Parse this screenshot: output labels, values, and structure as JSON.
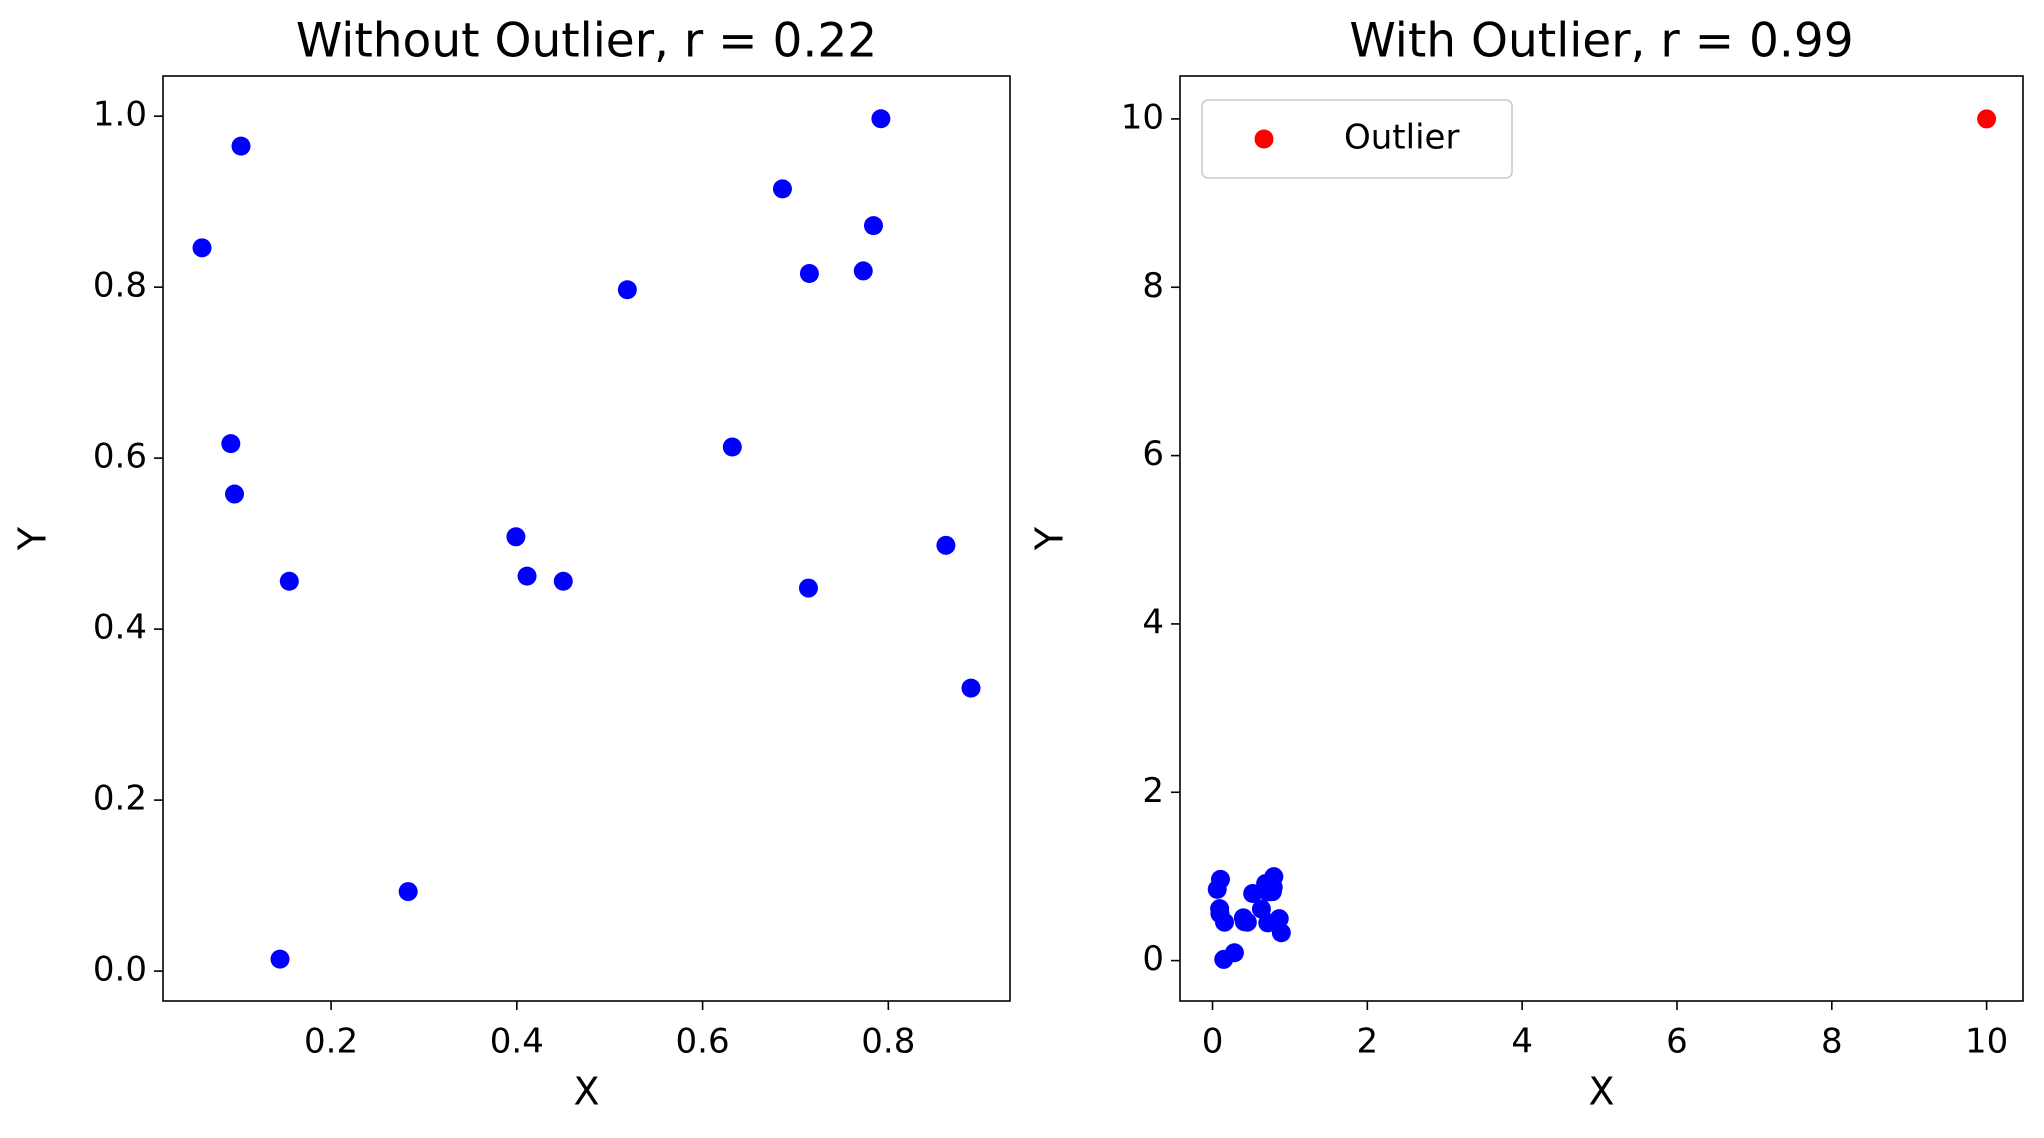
{
  "chart_data": [
    {
      "type": "scatter",
      "title": "Without Outlier, r = 0.22",
      "xlabel": "X",
      "ylabel": "Y",
      "xlim": [
        0.019,
        0.931
      ],
      "ylim": [
        -0.035,
        1.047
      ],
      "xticks": [
        0.2,
        0.4,
        0.6,
        0.8
      ],
      "yticks": [
        {
          "value": 0,
          "label": "0.0"
        },
        0.2,
        0.4,
        0.6,
        0.8,
        {
          "value": 1,
          "label": "1.0"
        }
      ],
      "series": [
        {
          "color": "#0000ff",
          "x": [
            0.061,
            0.103,
            0.092,
            0.096,
            0.155,
            0.145,
            0.283,
            0.399,
            0.411,
            0.45,
            0.519,
            0.632,
            0.686,
            0.715,
            0.714,
            0.773,
            0.784,
            0.792,
            0.862,
            0.889
          ],
          "values": [
            0.846,
            0.965,
            0.617,
            0.558,
            0.456,
            0.014,
            0.093,
            0.508,
            0.462,
            0.456,
            0.797,
            0.613,
            0.915,
            0.816,
            0.448,
            0.819,
            0.872,
            0.997,
            0.498,
            0.331
          ]
        }
      ]
    },
    {
      "type": "scatter",
      "title": "With Outlier, r = 0.99",
      "xlabel": "X",
      "ylabel": "Y",
      "xlim": [
        -0.42,
        10.47
      ],
      "ylim": [
        -0.48,
        10.51
      ],
      "xticks": [
        0,
        2,
        4,
        6,
        8,
        10
      ],
      "yticks": [
        0,
        2,
        4,
        6,
        8,
        10
      ],
      "legend": "upper left",
      "series": [
        {
          "color": "#0000ff",
          "x": [
            0.061,
            0.103,
            0.092,
            0.096,
            0.155,
            0.145,
            0.283,
            0.399,
            0.411,
            0.45,
            0.519,
            0.632,
            0.686,
            0.715,
            0.714,
            0.773,
            0.784,
            0.792,
            0.862,
            0.889
          ],
          "values": [
            0.846,
            0.965,
            0.617,
            0.558,
            0.456,
            0.014,
            0.093,
            0.508,
            0.462,
            0.456,
            0.797,
            0.613,
            0.915,
            0.816,
            0.448,
            0.819,
            0.872,
            0.997,
            0.498,
            0.331
          ]
        },
        {
          "name": "Outlier",
          "color": "#ff0000",
          "x": [
            10
          ],
          "values": [
            10
          ]
        }
      ]
    }
  ]
}
